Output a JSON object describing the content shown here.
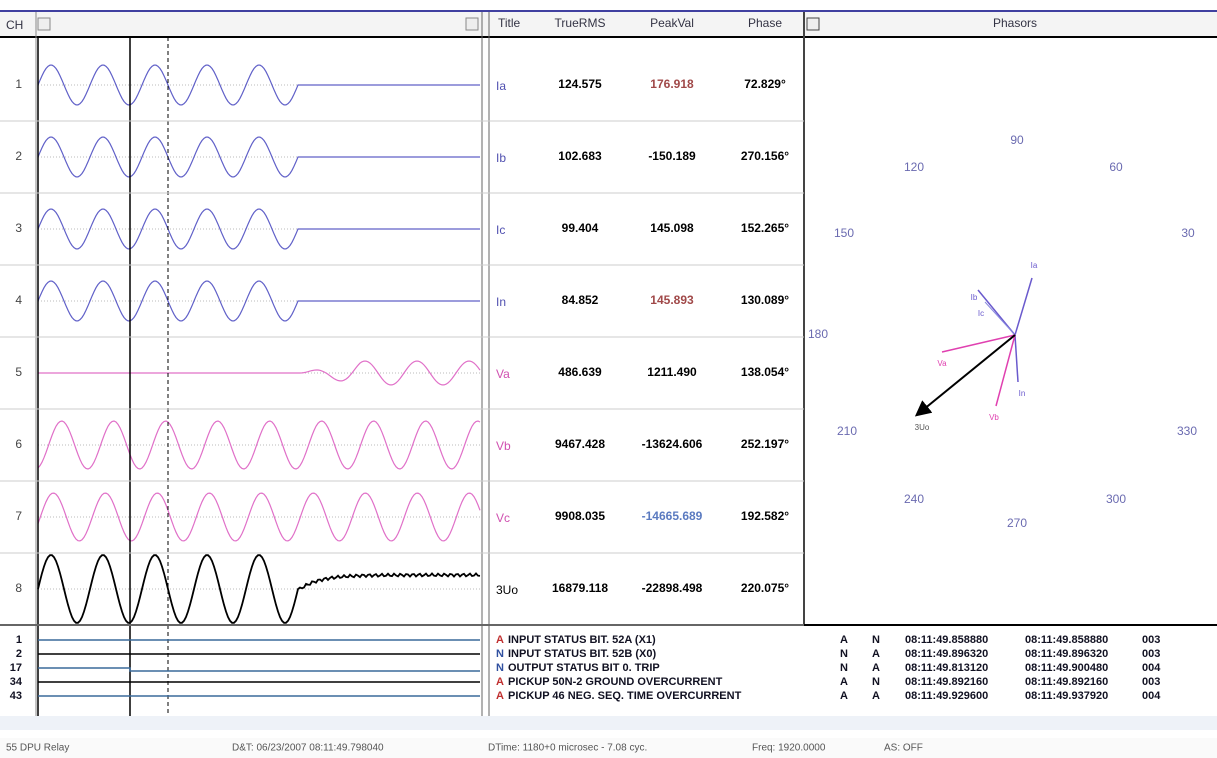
{
  "header": {
    "ch": "CH",
    "title": "Title",
    "truerms": "TrueRMS",
    "peakval": "PeakVal",
    "phase": "Phase",
    "phasors": "Phasors"
  },
  "channels": [
    {
      "number": "1",
      "title": "Ia",
      "truerms": "124.575",
      "peakval": "176.918",
      "phase": "72.829°"
    },
    {
      "number": "2",
      "title": "Ib",
      "truerms": "102.683",
      "peakval": "-150.189",
      "phase": "270.156°"
    },
    {
      "number": "3",
      "title": "Ic",
      "truerms": "99.404",
      "peakval": "145.098",
      "phase": "152.265°"
    },
    {
      "number": "4",
      "title": "In",
      "truerms": "84.852",
      "peakval": "145.893",
      "phase": "130.089°"
    },
    {
      "number": "5",
      "title": "Va",
      "truerms": "486.639",
      "peakval": "1211.490",
      "phase": "138.054°"
    },
    {
      "number": "6",
      "title": "Vb",
      "truerms": "9467.428",
      "peakval": "-13624.606",
      "phase": "252.197°"
    },
    {
      "number": "7",
      "title": "Vc",
      "truerms": "9908.035",
      "peakval": "-14665.689",
      "phase": "192.582°"
    },
    {
      "number": "8",
      "title": "3Uo",
      "truerms": "16879.118",
      "peakval": "-22898.498",
      "phase": "220.075°"
    }
  ],
  "phasor_angles": [
    "90",
    "120",
    "60",
    "150",
    "30",
    "180",
    "210",
    "330",
    "240",
    "300",
    "270"
  ],
  "phasor_vectors": [
    "Ia",
    "Ib",
    "Ic",
    "In",
    "Va",
    "Vb",
    "3Uo"
  ],
  "digital": [
    {
      "number": "1",
      "state": "A",
      "label": "INPUT STATUS BIT. 52A (X1)",
      "c1": "A",
      "c2": "N",
      "t1": "08:11:49.858880",
      "t2": "08:11:49.858880",
      "n": "003"
    },
    {
      "number": "2",
      "state": "N",
      "label": "INPUT STATUS BIT. 52B (X0)",
      "c1": "N",
      "c2": "A",
      "t1": "08:11:49.896320",
      "t2": "08:11:49.896320",
      "n": "003"
    },
    {
      "number": "17",
      "state": "N",
      "label": "OUTPUT STATUS BIT 0. TRIP",
      "c1": "N",
      "c2": "A",
      "t1": "08:11:49.813120",
      "t2": "08:11:49.900480",
      "n": "004"
    },
    {
      "number": "34",
      "state": "A",
      "label": "PICKUP 50N-2 GROUND OVERCURRENT",
      "c1": "A",
      "c2": "N",
      "t1": "08:11:49.892160",
      "t2": "08:11:49.892160",
      "n": "003"
    },
    {
      "number": "43",
      "state": "A",
      "label": "PICKUP 46 NEG. SEQ. TIME OVERCURRENT",
      "c1": "A",
      "c2": "A",
      "t1": "08:11:49.929600",
      "t2": "08:11:49.937920",
      "n": "004"
    }
  ],
  "status": {
    "device": "55 DPU Relay",
    "datetime": "D&T: 06/23/2007 08:11:49.798040",
    "dtime": "DTime: 1180+0 microsec - 7.08 cyc.",
    "freq": "Freq: 1920.0000",
    "as": "AS: OFF"
  }
}
